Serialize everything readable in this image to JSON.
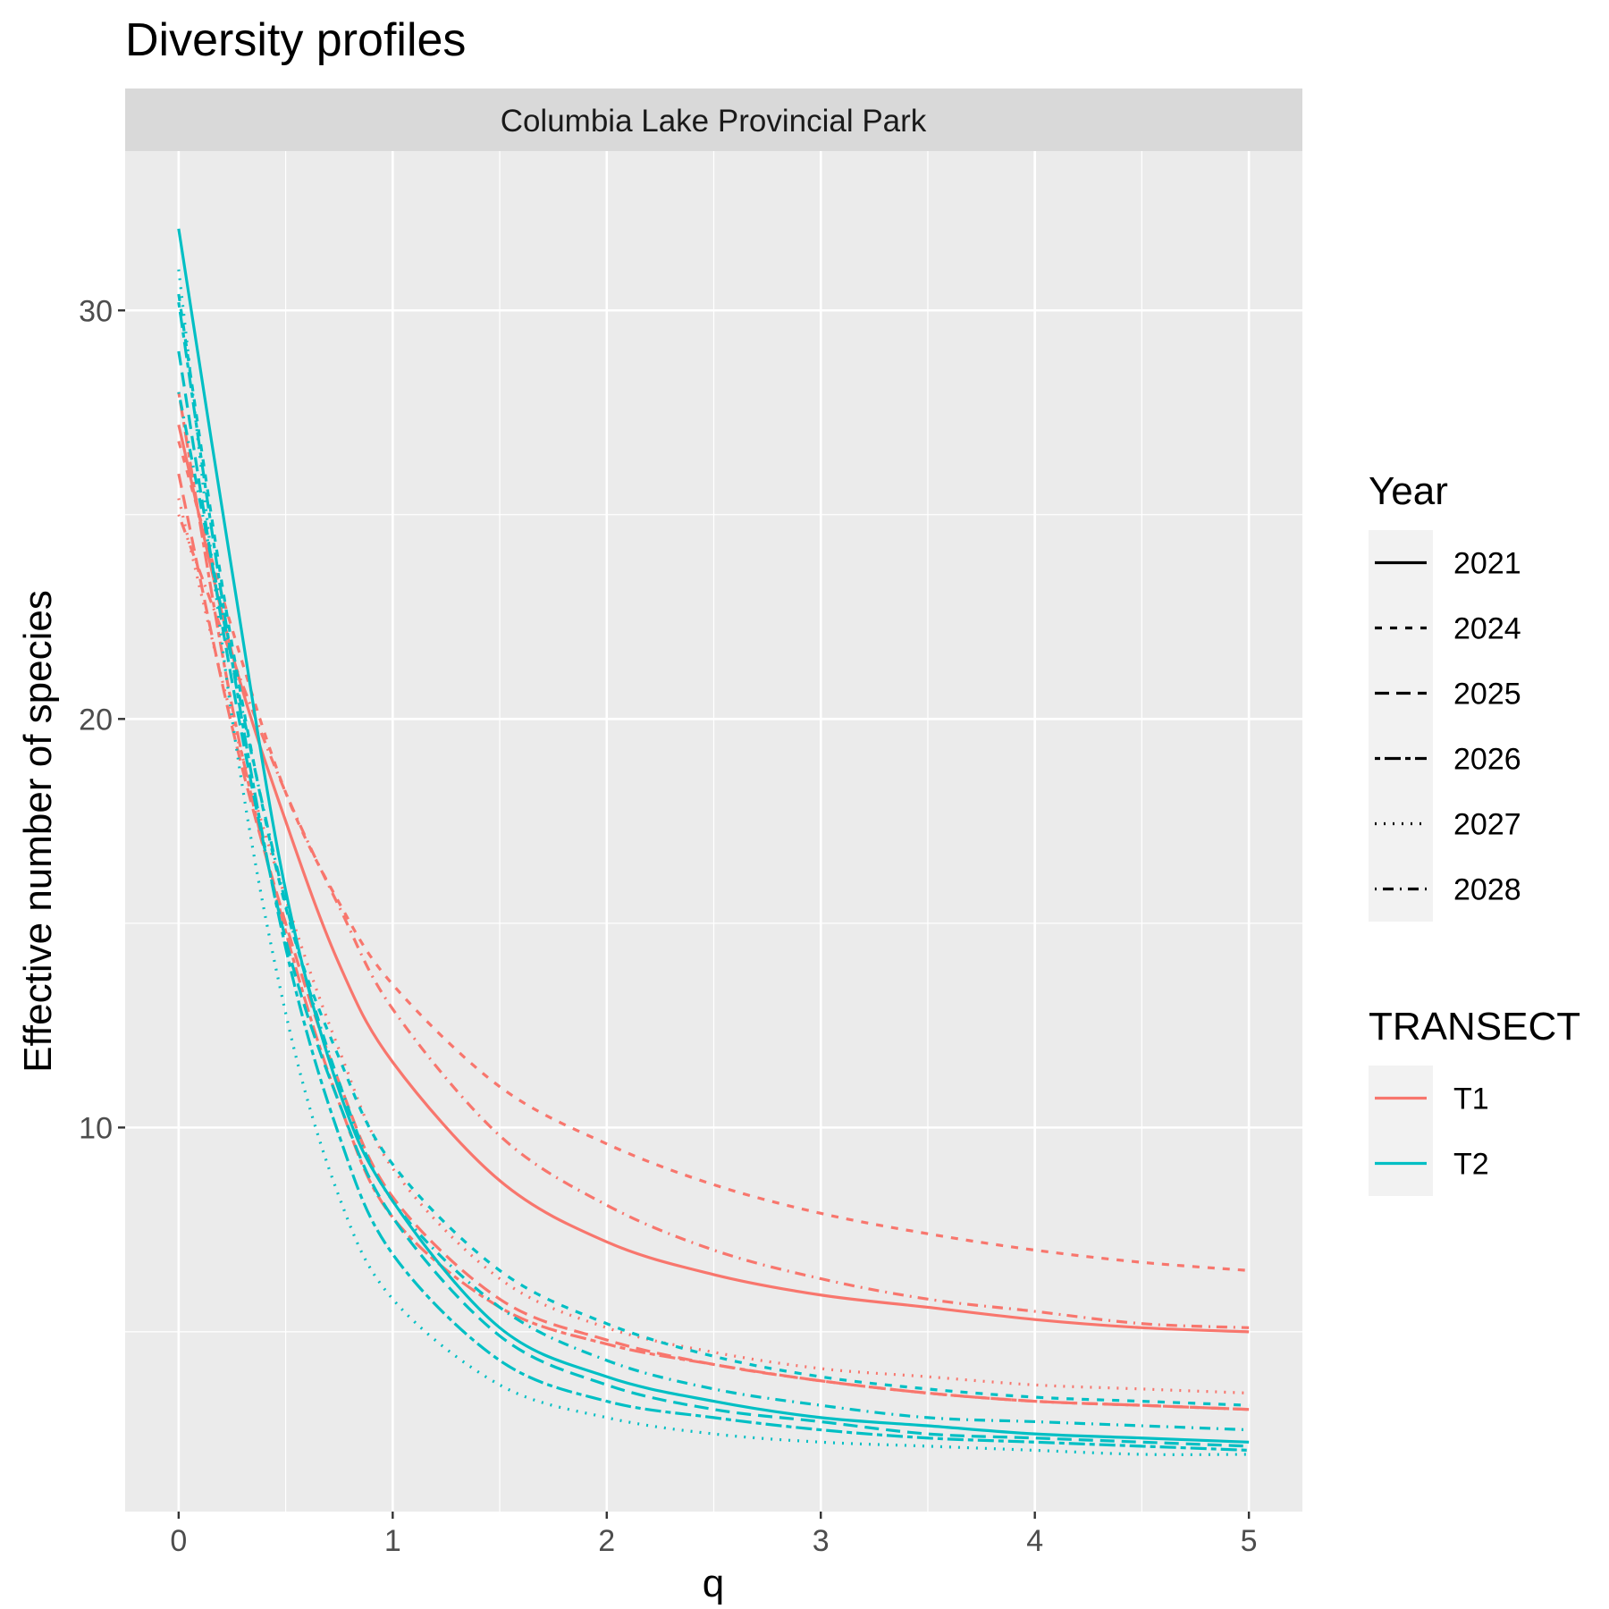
{
  "chart_data": {
    "type": "line",
    "title": "Diversity profiles",
    "facet": "Columbia Lake Provincial Park",
    "xlabel": "q",
    "ylabel": "Effective number of species",
    "xlim": [
      -0.25,
      5.25
    ],
    "ylim": [
      0.6,
      33.9
    ],
    "xticks": [
      0,
      1,
      2,
      3,
      4,
      5
    ],
    "yticks": [
      10,
      20,
      30
    ],
    "grid": true,
    "legend_position": "right",
    "legends": [
      {
        "title": "Year",
        "entries": [
          "2021",
          "2024",
          "2025",
          "2026",
          "2027",
          "2028"
        ]
      },
      {
        "title": "TRANSECT",
        "entries": [
          "T1",
          "T2"
        ]
      }
    ],
    "colors": {
      "T1": "#F8766D",
      "T2": "#00BFC4"
    },
    "linetypes": {
      "2021": "solid",
      "2024": "dashed",
      "2025": "longdash",
      "2026": "twodash",
      "2027": "dotted",
      "2028": "dotdash"
    },
    "x": [
      0,
      0.25,
      0.5,
      0.75,
      1,
      1.5,
      2,
      2.5,
      3,
      3.5,
      4,
      4.5,
      5
    ],
    "series": [
      {
        "transect": "T1",
        "year": "2021",
        "values": [
          27.2,
          21.6,
          17.5,
          14.0,
          11.6,
          8.7,
          7.2,
          6.4,
          5.9,
          5.6,
          5.3,
          5.1,
          5.0
        ]
      },
      {
        "transect": "T1",
        "year": "2024",
        "values": [
          26.8,
          22.2,
          18.2,
          15.5,
          13.5,
          11.0,
          9.6,
          8.6,
          7.9,
          7.4,
          7.0,
          6.7,
          6.5
        ]
      },
      {
        "transect": "T1",
        "year": "2025",
        "values": [
          26.0,
          19.8,
          15.0,
          11.1,
          8.3,
          5.8,
          4.8,
          4.2,
          3.8,
          3.5,
          3.3,
          3.2,
          3.1
        ]
      },
      {
        "transect": "T1",
        "year": "2026",
        "values": [
          28.0,
          20.3,
          14.8,
          10.6,
          7.8,
          5.6,
          4.7,
          4.2,
          3.8,
          3.5,
          3.3,
          3.2,
          3.1
        ]
      },
      {
        "transect": "T1",
        "year": "2027",
        "values": [
          25.4,
          20.0,
          15.6,
          11.9,
          9.0,
          6.3,
          5.1,
          4.5,
          4.1,
          3.9,
          3.7,
          3.6,
          3.5
        ]
      },
      {
        "transect": "T1",
        "year": "2028",
        "values": [
          25.0,
          21.5,
          18.2,
          15.4,
          12.9,
          9.8,
          8.1,
          7.0,
          6.3,
          5.8,
          5.5,
          5.2,
          5.1
        ]
      },
      {
        "transect": "T2",
        "year": "2021",
        "values": [
          32.0,
          23.6,
          15.8,
          10.9,
          8.2,
          5.1,
          3.9,
          3.3,
          2.9,
          2.7,
          2.5,
          2.4,
          2.3
        ]
      },
      {
        "transect": "T2",
        "year": "2024",
        "values": [
          30.4,
          21.8,
          15.4,
          11.7,
          9.1,
          6.5,
          5.2,
          4.4,
          3.9,
          3.6,
          3.4,
          3.3,
          3.2
        ]
      },
      {
        "transect": "T2",
        "year": "2025",
        "values": [
          29.0,
          20.9,
          14.6,
          10.6,
          7.8,
          4.9,
          3.7,
          3.1,
          2.8,
          2.5,
          2.4,
          2.3,
          2.2
        ]
      },
      {
        "transect": "T2",
        "year": "2026",
        "values": [
          30.2,
          21.4,
          14.4,
          9.8,
          6.9,
          4.3,
          3.3,
          2.9,
          2.6,
          2.4,
          2.3,
          2.2,
          2.1
        ]
      },
      {
        "transect": "T2",
        "year": "2027",
        "values": [
          31.0,
          20.0,
          12.8,
          8.3,
          5.8,
          3.7,
          2.9,
          2.5,
          2.3,
          2.2,
          2.1,
          2.0,
          2.0
        ]
      },
      {
        "transect": "T2",
        "year": "2028",
        "values": [
          28.0,
          21.4,
          15.5,
          11.1,
          8.2,
          5.6,
          4.3,
          3.6,
          3.2,
          2.9,
          2.8,
          2.7,
          2.6
        ]
      }
    ]
  }
}
